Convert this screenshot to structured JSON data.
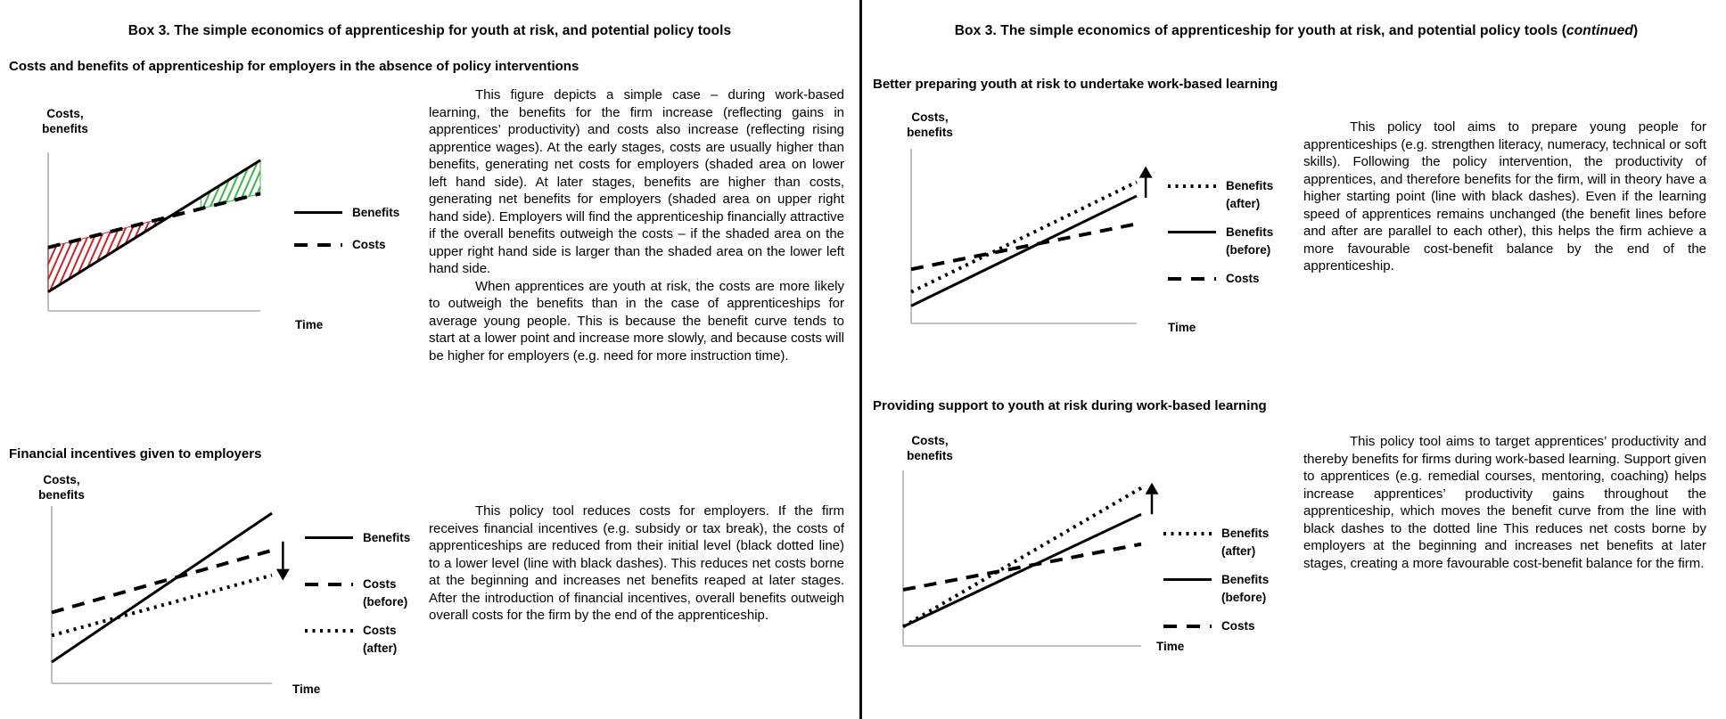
{
  "page": {
    "background": "#ffffff",
    "divider_color": "#0a0a0a"
  },
  "left": {
    "title": "Box 3. The simple economics of apprenticeship for youth at risk, and potential policy tools",
    "section1": {
      "heading": "Costs and benefits of apprenticeship for employers in the absence of policy interventions",
      "para1": "This figure depicts a simple case – during work-based learning, the benefits for the firm increase (reflecting gains in apprentices’ productivity) and costs also increase (reflecting rising apprentice wages). At the early stages, costs are usually higher than benefits, generating net costs for employers (shaded area on lower left hand side). At later stages, benefits are higher than costs, generating net benefits for employers (shaded area on upper right hand side). Employers will find the apprenticeship financially attractive if the overall benefits outweigh the costs – if the shaded area on the upper right hand side is larger than the shaded area on the lower left hand side.",
      "para2": "When apprentices are youth at risk, the costs are more likely to outweigh the benefits than in the case of apprenticeships for average young people. This is because the benefit curve tends to start at a lower point and increase more slowly, and because costs will be higher for employers (e.g. need for more instruction time)."
    },
    "section2": {
      "heading": "Financial incentives given to employers",
      "para1": "This policy tool reduces costs for employers. If the firm receives financial incentives (e.g. subsidy or tax break), the costs of apprenticeships are reduced from their initial level (black dotted line) to a lower level (line with black dashes). This reduces net costs borne at the beginning and increases net benefits reaped at later stages. After the introduction of financial incentives, overall benefits outweigh overall costs for the firm by the end of the apprenticeship."
    }
  },
  "right": {
    "title_prefix": "Box 3. The simple economics of apprenticeship for youth at risk, and potential policy tools (",
    "title_continued": "continued",
    "title_suffix": ")",
    "section1": {
      "heading": "Better preparing youth at risk to undertake work-based learning",
      "para1": "This policy tool aims to prepare young people for apprenticeships (e.g. strengthen literacy, numeracy, technical or soft skills). Following the policy intervention, the productivity of apprentices, and therefore benefits for the firm, will in theory have a higher starting point (line with black dashes). Even if the learning speed of apprentices remains unchanged (the benefit lines before and after are parallel to each other), this helps the firm achieve a more favourable cost-benefit balance by the end of the apprenticeship."
    },
    "section2": {
      "heading": "Providing support to youth at risk during work-based learning",
      "para1": "This policy tool aims to target apprentices’ productivity and thereby benefits for firms during work-based learning. Support given to apprentices (e.g. remedial courses, mentoring, coaching) helps increase apprentices’ productivity gains throughout the apprenticeship, which moves the benefit curve from the line with black dashes to the dotted line This reduces net costs borne by employers at the beginning and increases net benefits at later stages, creating a more favourable cost-benefit balance for the firm."
    }
  },
  "chart_data": [
    {
      "type": "line",
      "title": "Costs and benefits of apprenticeship for employers in the absence of policy interventions",
      "xlabel": "Time",
      "ylabel": "Costs, benefits",
      "ylabel_line1": "Costs,",
      "ylabel_line2": "benefits",
      "x_range": [
        0,
        1
      ],
      "y_range": [
        0,
        1
      ],
      "grid": false,
      "legend_position": "right",
      "series": [
        {
          "name": "Benefits",
          "style": "solid",
          "x": [
            0,
            1
          ],
          "y": [
            0.12,
            0.95
          ]
        },
        {
          "name": "Costs",
          "style": "dashed",
          "x": [
            0,
            1
          ],
          "y": [
            0.4,
            0.74
          ]
        }
      ],
      "legend": [
        {
          "style": "solid",
          "label": "Benefits"
        },
        {
          "style": "dashed",
          "label": "Costs"
        }
      ],
      "areas": [
        {
          "upper": 1,
          "lower": 0,
          "x0": 0.0,
          "x1": 0.55,
          "color": "#c1272d",
          "meaning": "net costs for employers (lower left)"
        },
        {
          "upper": 0,
          "lower": 1,
          "x0": 0.72,
          "x1": 1.0,
          "color": "#3cb54a",
          "meaning": "net benefits for employers (upper right)"
        }
      ]
    },
    {
      "type": "line",
      "title": "Financial incentives given to employers",
      "xlabel": "Time",
      "ylabel": "Costs, benefits",
      "ylabel_line1": "Costs,",
      "ylabel_line2": "benefits",
      "x_range": [
        0,
        1
      ],
      "y_range": [
        0,
        1
      ],
      "grid": false,
      "legend_position": "right",
      "series": [
        {
          "name": "Benefits",
          "style": "solid",
          "x": [
            0,
            1
          ],
          "y": [
            0.12,
            0.96
          ]
        },
        {
          "name": "Costs (before)",
          "style": "dashed",
          "x": [
            0,
            1
          ],
          "y": [
            0.4,
            0.75
          ]
        },
        {
          "name": "Costs (after)",
          "style": "dotted",
          "x": [
            0,
            1
          ],
          "y": [
            0.27,
            0.61
          ]
        }
      ],
      "legend": [
        {
          "style": "solid",
          "label": "Benefits"
        },
        {
          "style": "dashed",
          "label": "Costs (before)"
        },
        {
          "style": "dotted",
          "label": "Costs (after)"
        }
      ],
      "arrow": {
        "dir": "down",
        "x": 1.05,
        "y_from": 0.8,
        "y_to": 0.58,
        "meaning": "costs shift down after financial incentives"
      }
    },
    {
      "type": "line",
      "title": "Better preparing youth at risk to undertake work-based learning",
      "xlabel": "Time",
      "ylabel": "Costs, benefits",
      "ylabel_line1": "Costs,",
      "ylabel_line2": "benefits",
      "x_range": [
        0,
        1
      ],
      "y_range": [
        0,
        1
      ],
      "grid": false,
      "legend_position": "right",
      "series": [
        {
          "name": "Benefits (after)",
          "style": "dotted",
          "x": [
            0,
            1
          ],
          "y": [
            0.18,
            0.81
          ]
        },
        {
          "name": "Benefits (before)",
          "style": "solid",
          "x": [
            0,
            1
          ],
          "y": [
            0.1,
            0.73
          ]
        },
        {
          "name": "Costs",
          "style": "dashed",
          "x": [
            0,
            1
          ],
          "y": [
            0.31,
            0.57
          ]
        }
      ],
      "legend": [
        {
          "style": "dotted",
          "label": "Benefits (after)"
        },
        {
          "style": "solid",
          "label": "Benefits (before)"
        },
        {
          "style": "dashed",
          "label": "Costs"
        }
      ],
      "arrow": {
        "dir": "up",
        "x": 1.04,
        "y_from": 0.72,
        "y_to": 0.9,
        "meaning": "benefits shift up after preparation"
      }
    },
    {
      "type": "line",
      "title": "Providing support to youth at risk during work-based learning",
      "xlabel": "Time",
      "ylabel": "Costs, benefits",
      "ylabel_line1": "Costs,",
      "ylabel_line2": "benefits",
      "x_range": [
        0,
        1
      ],
      "y_range": [
        0,
        1
      ],
      "grid": false,
      "legend_position": "right",
      "series": [
        {
          "name": "Benefits (after)",
          "style": "dotted",
          "x": [
            0,
            1
          ],
          "y": [
            0.11,
            0.9
          ]
        },
        {
          "name": "Benefits (before)",
          "style": "solid",
          "x": [
            0,
            1
          ],
          "y": [
            0.11,
            0.75
          ]
        },
        {
          "name": "Costs",
          "style": "dashed",
          "x": [
            0,
            1
          ],
          "y": [
            0.32,
            0.58
          ]
        }
      ],
      "legend": [
        {
          "style": "dotted",
          "label": "Benefits (after)"
        },
        {
          "style": "solid",
          "label": "Benefits (before)"
        },
        {
          "style": "dashed",
          "label": "Costs"
        }
      ],
      "arrow": {
        "dir": "up",
        "x": 1.045,
        "y_from": 0.75,
        "y_to": 0.93,
        "meaning": "benefit slope increases with support"
      }
    }
  ],
  "colors": {
    "ink": "#000000",
    "axis": "#c0c0c0",
    "net_cost_hatch": "#c1272d",
    "net_benefit_hatch": "#3cb54a"
  }
}
